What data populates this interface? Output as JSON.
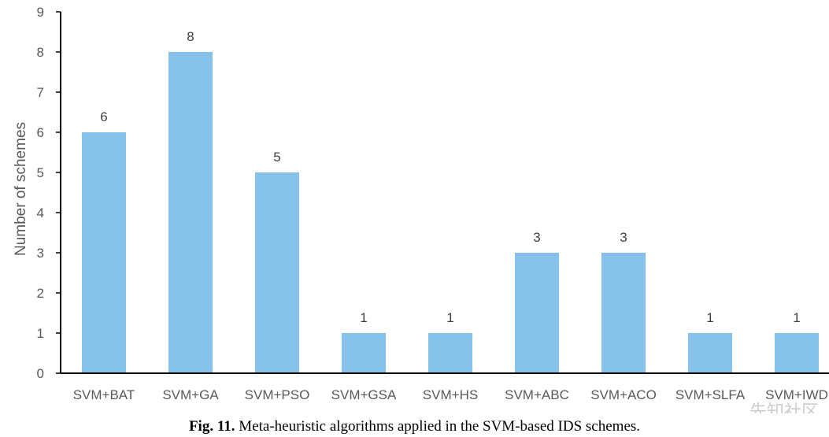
{
  "chart_data": {
    "type": "bar",
    "categories": [
      "SVM+BAT",
      "SVM+GA",
      "SVM+PSO",
      "SVM+GSA",
      "SVM+HS",
      "SVM+ABC",
      "SVM+ACO",
      "SVM+SLFA",
      "SVM+IWD"
    ],
    "values": [
      6,
      8,
      5,
      1,
      1,
      3,
      3,
      1,
      1
    ],
    "ylabel": "Number of schemes",
    "xlabel": "",
    "ylim": [
      0,
      9
    ],
    "yticks": [
      0,
      1,
      2,
      3,
      4,
      5,
      6,
      7,
      8,
      9
    ],
    "bar_color": "#85c1e9",
    "grid": false,
    "data_labels": true
  },
  "caption": {
    "label": "Fig. 11.",
    "text": "Meta-heuristic algorithms applied in the SVM-based IDS schemes."
  },
  "watermark": "先知社区"
}
